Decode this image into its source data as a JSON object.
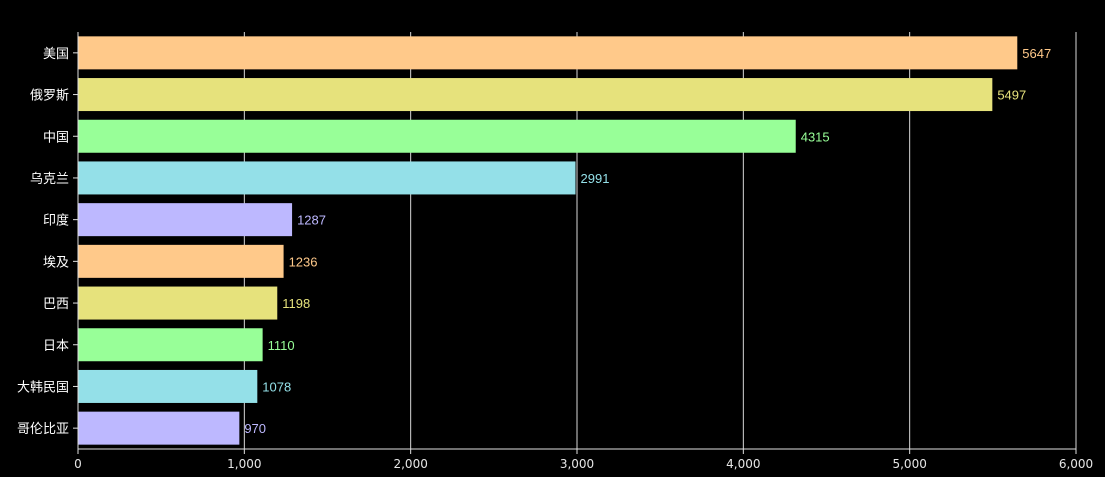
{
  "chart_data": {
    "type": "bar",
    "orientation": "horizontal",
    "categories": [
      "美国",
      "俄罗斯",
      "中国",
      "乌克兰",
      "印度",
      "埃及",
      "巴西",
      "日本",
      "大韩民国",
      "哥伦比亚"
    ],
    "values": [
      5647,
      5497,
      4315,
      2991,
      1287,
      1236,
      1198,
      1110,
      1078,
      970
    ],
    "xlim": [
      0,
      6000
    ],
    "x_ticks": [
      "0",
      "1,000",
      "2,000",
      "3,000",
      "4,000",
      "5,000",
      "6,000"
    ],
    "grid": "vertical",
    "data_labels": true,
    "colors": [
      "#ffc98a",
      "#e6e27c",
      "#98ff98",
      "#94e0e8",
      "#bdb8ff"
    ],
    "background": "#000000"
  }
}
